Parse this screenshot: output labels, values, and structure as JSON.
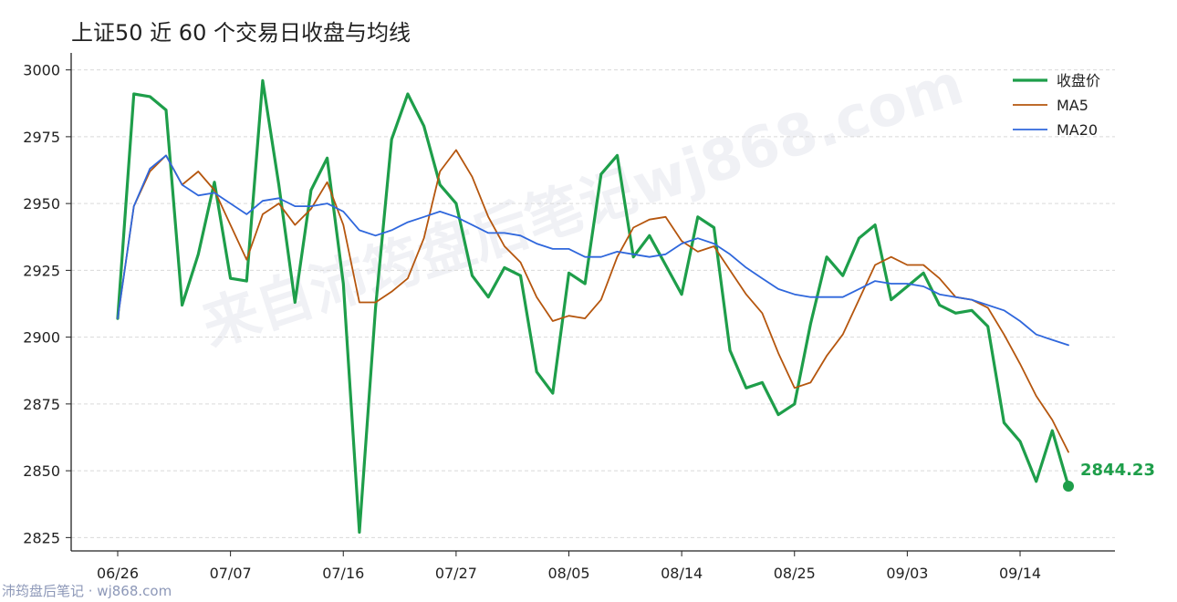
{
  "title": "上证50 近 60 个交易日收盘与均线",
  "watermark": "来自沛筠盘后笔记wj868.com",
  "credit": "沛筠盘后笔记 · wj868.com",
  "last_value_label": "2844.23",
  "colors": {
    "close": "#1e9e4a",
    "ma5": "#b5560e",
    "ma20": "#2f67dc",
    "grid": "#d9d9d9",
    "axis": "#222222"
  },
  "chart_data": {
    "type": "line",
    "title": "上证50 近 60 个交易日收盘与均线",
    "xlabel": "",
    "ylabel": "",
    "ylim": [
      2820,
      3005
    ],
    "yticks": [
      2825,
      2850,
      2875,
      2900,
      2925,
      2950,
      2975,
      3000
    ],
    "x_tick_labels": [
      "06/26",
      "07/07",
      "07/16",
      "07/27",
      "08/05",
      "08/14",
      "08/25",
      "09/03",
      "09/14"
    ],
    "x_tick_index": [
      0,
      7,
      14,
      21,
      28,
      35,
      42,
      49,
      56
    ],
    "grid": "horizontal dashed",
    "legend_position": "top-right",
    "series": [
      {
        "name": "收盘价",
        "values": [
          2907,
          2991,
          2990,
          2985,
          2912,
          2931,
          2958,
          2922,
          2921,
          2996,
          2957,
          2913,
          2955,
          2967,
          2920,
          2827,
          2911,
          2974,
          2991,
          2979,
          2957,
          2950,
          2923,
          2915,
          2926,
          2923,
          2887,
          2879,
          2924,
          2920,
          2961,
          2968,
          2930,
          2938,
          2927,
          2916,
          2945,
          2941,
          2895,
          2881,
          2883,
          2871,
          2875,
          2905,
          2930,
          2923,
          2937,
          2942,
          2914,
          2919,
          2924,
          2912,
          2909,
          2910,
          2904,
          2868,
          2861,
          2846,
          2865,
          2844.23
        ]
      },
      {
        "name": "MA5",
        "values": [
          2907,
          2949,
          2962,
          2968,
          2957,
          2962,
          2955,
          2942,
          2929,
          2946,
          2950,
          2942,
          2948,
          2958,
          2942,
          2913,
          2913,
          2917,
          2922,
          2937,
          2962,
          2970,
          2960,
          2945,
          2934,
          2928,
          2915,
          2906,
          2908,
          2907,
          2914,
          2930,
          2941,
          2944,
          2945,
          2936,
          2932,
          2934,
          2925,
          2916,
          2909,
          2894,
          2881,
          2883,
          2893,
          2901,
          2914,
          2927,
          2930,
          2927,
          2927,
          2922,
          2915,
          2914,
          2911,
          2901,
          2890,
          2878,
          2869,
          2857
        ]
      },
      {
        "name": "MA20",
        "values": [
          2907,
          2949,
          2963,
          2968,
          2957,
          2953,
          2954,
          2950,
          2946,
          2951,
          2952,
          2949,
          2949,
          2950,
          2947,
          2940,
          2938,
          2940,
          2943,
          2945,
          2947,
          2945,
          2942,
          2939,
          2939,
          2938,
          2935,
          2933,
          2933,
          2930,
          2930,
          2932,
          2931,
          2930,
          2931,
          2935,
          2937,
          2935,
          2931,
          2926,
          2922,
          2918,
          2916,
          2915,
          2915,
          2915,
          2918,
          2921,
          2920,
          2920,
          2919,
          2916,
          2915,
          2914,
          2912,
          2910,
          2906,
          2901,
          2899,
          2897
        ]
      }
    ]
  }
}
